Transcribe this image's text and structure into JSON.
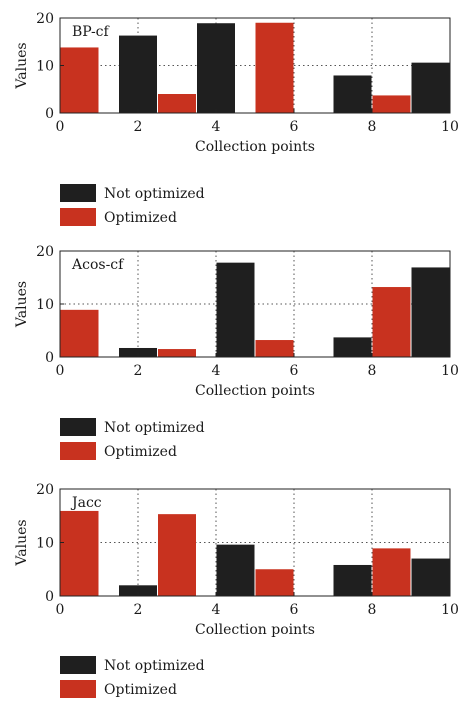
{
  "colors": {
    "not_optimized": "#1f1f1f",
    "optimized": "#c8321f",
    "axis": "#222222",
    "grid": "#555555"
  },
  "chart_data": [
    {
      "type": "bar",
      "title": "BP-cf",
      "xlabel": "Collection points",
      "ylabel": "Values",
      "xlim": [
        0,
        10
      ],
      "ylim": [
        0,
        20
      ],
      "xticks": [
        "0",
        "2",
        "4",
        "6",
        "8",
        "10"
      ],
      "yticks": [
        "0",
        "10",
        "20"
      ],
      "grid": true,
      "series": [
        {
          "name": "Not optimized",
          "x": [
            2,
            4,
            7.5,
            9.5
          ],
          "values": [
            16.3,
            18.9,
            7.9,
            10.6
          ]
        },
        {
          "name": "Optimized",
          "x": [
            0.5,
            3,
            5.5,
            8.5
          ],
          "values": [
            13.8,
            4.0,
            19.0,
            3.7
          ]
        }
      ],
      "legend": [
        "Not optimized",
        "Optimized"
      ],
      "legend_placement": "below"
    },
    {
      "type": "bar",
      "title": "Acos-cf",
      "xlabel": "Collection points",
      "ylabel": "Values",
      "xlim": [
        0,
        10
      ],
      "ylim": [
        0,
        20
      ],
      "xticks": [
        "0",
        "2",
        "4",
        "6",
        "8",
        "10"
      ],
      "yticks": [
        "0",
        "10",
        "20"
      ],
      "grid": true,
      "series": [
        {
          "name": "Not optimized",
          "x": [
            2,
            4.5,
            7.5,
            9.5
          ],
          "values": [
            1.7,
            17.8,
            3.7,
            16.9
          ]
        },
        {
          "name": "Optimized",
          "x": [
            0.5,
            3,
            5.5,
            8.5
          ],
          "values": [
            8.9,
            1.5,
            3.2,
            13.2
          ]
        }
      ],
      "legend": [
        "Not optimized",
        "Optimized"
      ],
      "legend_placement": "below"
    },
    {
      "type": "bar",
      "title": "Jacc",
      "xlabel": "Collection points",
      "ylabel": "Values",
      "xlim": [
        0,
        10
      ],
      "ylim": [
        0,
        20
      ],
      "xticks": [
        "0",
        "2",
        "4",
        "6",
        "8",
        "10"
      ],
      "yticks": [
        "0",
        "10",
        "20"
      ],
      "grid": true,
      "series": [
        {
          "name": "Not optimized",
          "x": [
            2,
            4.5,
            7.5,
            9.5
          ],
          "values": [
            2.0,
            9.6,
            5.8,
            7.0
          ]
        },
        {
          "name": "Optimized",
          "x": [
            0.5,
            3,
            5.5,
            8.5
          ],
          "values": [
            15.9,
            15.3,
            5.0,
            8.9
          ]
        }
      ],
      "legend": [
        "Not optimized",
        "Optimized"
      ],
      "legend_placement": "below"
    }
  ]
}
